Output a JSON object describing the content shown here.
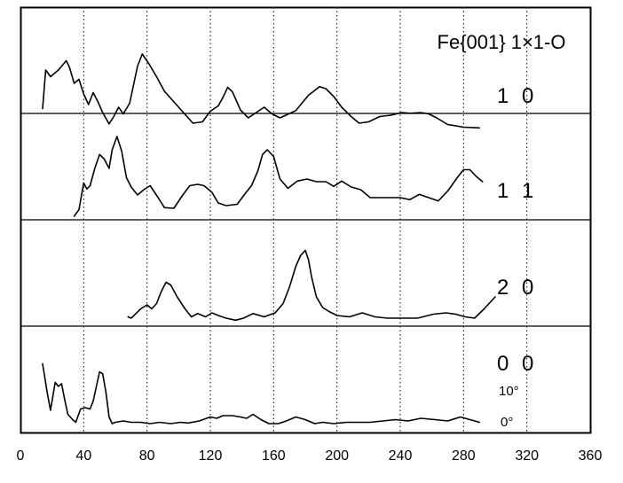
{
  "chart_data": {
    "type": "line",
    "title": "Fe{001} 1×1-O",
    "xlim": [
      0,
      360
    ],
    "x_ticks": [
      "0",
      "40",
      "80",
      "120",
      "160",
      "200",
      "240",
      "280",
      "320",
      "360"
    ],
    "grid": "vertical dotted lines",
    "panel_count": 4,
    "series": [
      {
        "name": "1 0",
        "x": [
          14,
          16,
          19,
          24,
          29,
          31,
          34,
          37,
          40,
          43,
          46,
          49,
          52,
          56,
          59,
          62,
          65,
          69,
          74,
          77,
          81,
          86,
          91,
          97,
          103,
          109,
          115,
          120,
          125,
          128,
          131,
          134,
          139,
          144,
          149,
          154,
          159,
          164,
          174,
          182,
          189,
          193,
          198,
          203,
          209,
          214,
          220,
          227,
          234,
          241,
          246,
          253,
          258,
          263,
          270,
          280,
          290
        ],
        "y": [
          0.1,
          0.68,
          0.58,
          0.68,
          0.82,
          0.72,
          0.48,
          0.54,
          0.32,
          0.16,
          0.34,
          0.2,
          0.04,
          -0.13,
          -0.02,
          0.12,
          0.02,
          0.18,
          0.74,
          0.92,
          0.78,
          0.58,
          0.36,
          0.2,
          0.04,
          -0.12,
          -0.1,
          0.06,
          0.14,
          0.27,
          0.42,
          0.35,
          0.08,
          -0.04,
          0.04,
          0.12,
          0.02,
          -0.04,
          0.07,
          0.3,
          0.43,
          0.4,
          0.28,
          0.12,
          -0.02,
          -0.12,
          -0.1,
          -0.02,
          0.0,
          0.04,
          0.03,
          0.04,
          0.02,
          -0.04,
          -0.14,
          -0.18,
          -0.19
        ]
      },
      {
        "name": "1 1",
        "x": [
          34,
          37,
          40,
          42,
          44,
          47,
          50,
          53,
          56,
          58,
          61,
          64,
          67,
          70,
          74,
          78,
          82,
          87,
          91,
          97,
          102,
          107,
          112,
          116,
          121,
          125,
          130,
          137,
          142,
          146,
          150,
          153,
          156,
          160,
          164,
          169,
          175,
          181,
          187,
          193,
          198,
          203,
          209,
          215,
          221,
          227,
          233,
          240,
          246,
          252,
          258,
          264,
          270,
          276,
          280,
          284,
          288,
          292
        ],
        "y": [
          -0.08,
          0.02,
          0.42,
          0.33,
          0.38,
          0.64,
          0.85,
          0.78,
          0.64,
          0.92,
          1.12,
          0.9,
          0.5,
          0.36,
          0.24,
          0.32,
          0.38,
          0.2,
          0.05,
          0.04,
          0.22,
          0.38,
          0.4,
          0.38,
          0.28,
          0.12,
          0.08,
          0.1,
          0.26,
          0.38,
          0.6,
          0.85,
          0.92,
          0.82,
          0.48,
          0.34,
          0.45,
          0.48,
          0.44,
          0.44,
          0.37,
          0.45,
          0.36,
          0.32,
          0.2,
          0.2,
          0.2,
          0.2,
          0.17,
          0.25,
          0.2,
          0.15,
          0.3,
          0.5,
          0.62,
          0.62,
          0.52,
          0.44
        ]
      },
      {
        "name": "2 0",
        "x": [
          68,
          70,
          73,
          76,
          80,
          83,
          86,
          89,
          92,
          95,
          99,
          104,
          108,
          112,
          117,
          121,
          125,
          130,
          136,
          141,
          147,
          154,
          161,
          166,
          170,
          174,
          177,
          180,
          182,
          184,
          187,
          191,
          195,
          200,
          208,
          216,
          224,
          232,
          241,
          251,
          261,
          269,
          275,
          281,
          287,
          293,
          300
        ],
        "y": [
          -0.1,
          -0.12,
          -0.05,
          0.02,
          0.08,
          0.02,
          0.1,
          0.28,
          0.42,
          0.38,
          0.2,
          0.02,
          -0.1,
          -0.05,
          -0.1,
          -0.04,
          -0.08,
          -0.12,
          -0.15,
          -0.12,
          -0.05,
          -0.1,
          -0.04,
          0.1,
          0.35,
          0.66,
          0.82,
          0.9,
          0.76,
          0.5,
          0.2,
          0.04,
          -0.02,
          -0.08,
          -0.1,
          -0.04,
          -0.1,
          -0.12,
          -0.12,
          -0.12,
          -0.06,
          -0.04,
          -0.06,
          -0.1,
          -0.12,
          0.02,
          0.2
        ]
      },
      {
        "name": "0 0",
        "x": [
          14,
          17,
          19,
          22,
          24,
          26,
          28,
          30,
          33,
          35,
          38,
          41,
          44,
          46,
          48,
          50,
          52,
          54,
          56,
          58,
          60,
          65,
          70,
          76,
          82,
          88,
          95,
          101,
          106,
          113,
          120,
          124,
          128,
          134,
          139,
          143,
          147,
          152,
          157,
          163,
          168,
          174,
          180,
          186,
          191,
          198,
          206,
          214,
          221,
          229,
          237,
          245,
          253,
          262,
          270,
          278,
          284,
          290
        ],
        "y": [
          0.9,
          0.46,
          0.2,
          0.62,
          0.56,
          0.6,
          0.36,
          0.14,
          0.06,
          0.02,
          0.22,
          0.24,
          0.22,
          0.34,
          0.56,
          0.78,
          0.75,
          0.48,
          0.1,
          0.0,
          0.02,
          0.04,
          0.02,
          0.02,
          0.0,
          0.02,
          0.0,
          0.02,
          0.01,
          0.04,
          0.1,
          0.08,
          0.12,
          0.12,
          0.1,
          0.08,
          0.14,
          0.06,
          0.0,
          0.0,
          0.04,
          0.1,
          0.06,
          0.0,
          0.02,
          0.0,
          0.02,
          0.02,
          0.02,
          0.04,
          0.06,
          0.04,
          0.08,
          0.06,
          0.04,
          0.1,
          0.06,
          0.02
        ]
      }
    ],
    "scale_labels": [
      "10°",
      "0°"
    ]
  }
}
